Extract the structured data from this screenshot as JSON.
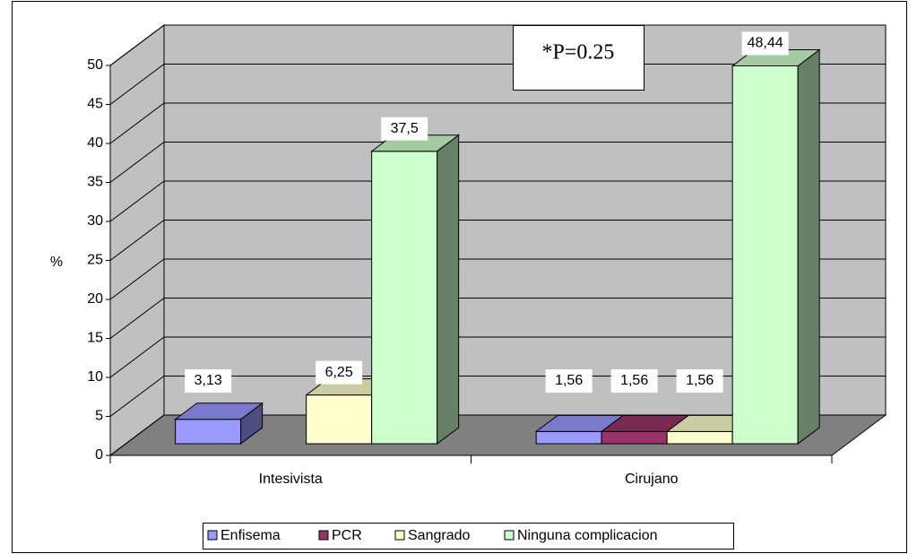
{
  "chart_data": {
    "type": "bar3d",
    "categories": [
      "Intesivista",
      "Cirujano"
    ],
    "y_label": "%",
    "annotation": "*P=0.25",
    "ylim": [
      0,
      50
    ],
    "yticks": [
      0,
      5,
      10,
      15,
      20,
      25,
      30,
      35,
      40,
      45,
      50
    ],
    "grid": true,
    "legend": "bottom",
    "series": [
      {
        "name": "Enfisema",
        "color": "#9999ff",
        "values": [
          3.13,
          1.56
        ],
        "value_labels": [
          "3,13",
          "1,56"
        ]
      },
      {
        "name": "PCR",
        "color": "#993366",
        "values": [
          null,
          1.56
        ],
        "value_labels": [
          null,
          "1,56"
        ]
      },
      {
        "name": "Sangrado",
        "color": "#ffffcc",
        "values": [
          6.25,
          1.56
        ],
        "value_labels": [
          "6,25",
          "1,56"
        ]
      },
      {
        "name": "Ninguna complicacion",
        "color": "#ccffcc",
        "values": [
          37.5,
          48.44
        ],
        "value_labels": [
          "37,5",
          "48,44"
        ]
      }
    ]
  }
}
